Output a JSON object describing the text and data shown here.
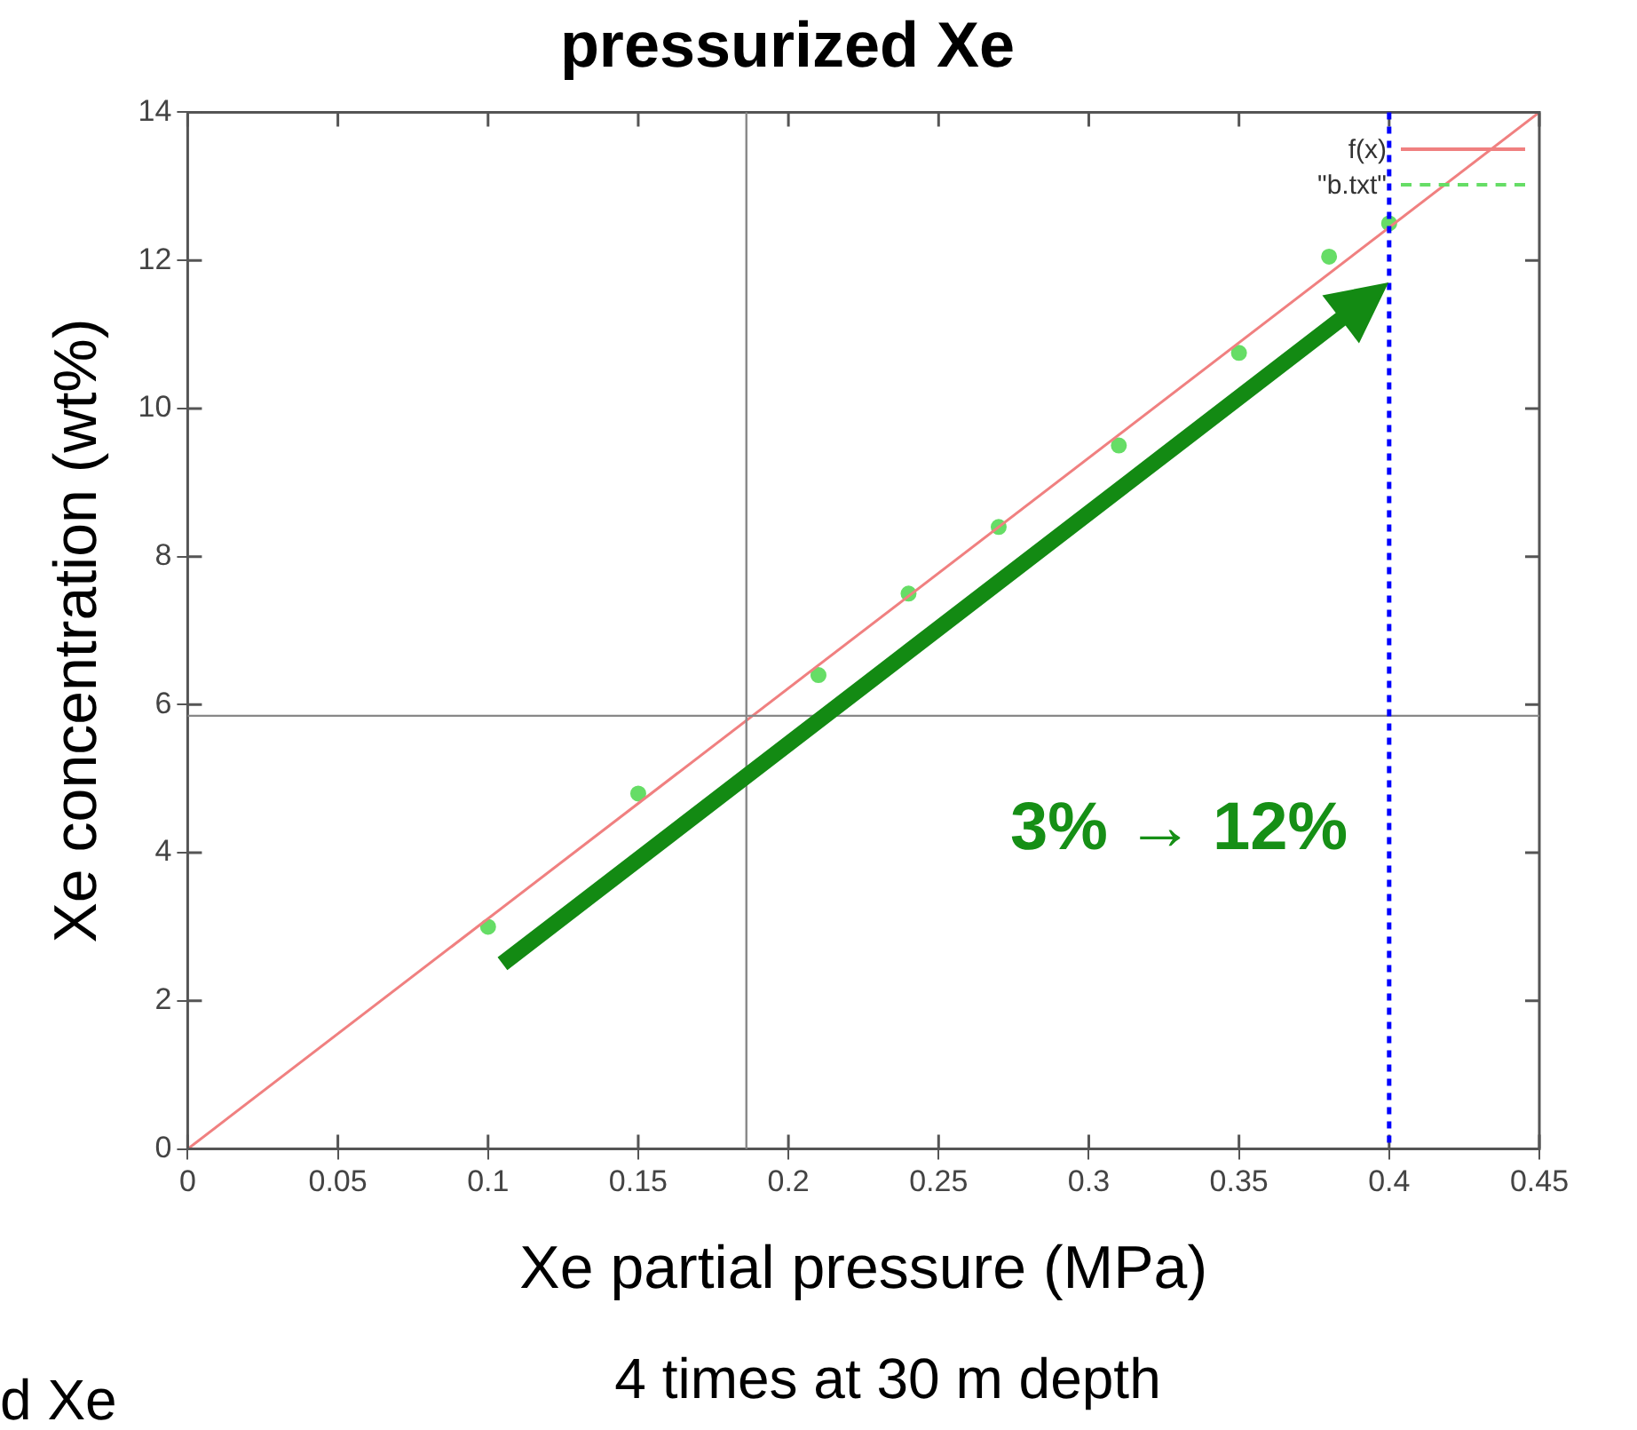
{
  "chart_data": {
    "type": "scatter",
    "title": "pressurized Xe",
    "xlabel": "Xe partial pressure (MPa)",
    "ylabel": "Xe concentration (wt%)",
    "annotations": [
      "3% → 12%",
      "4 times at 30 m depth",
      "d Xe"
    ],
    "series": [
      {
        "name": "f(x)",
        "type": "line",
        "color": "#f08080",
        "marker": "none",
        "x": [
          0,
          0.45
        ],
        "values": [
          0,
          14
        ]
      },
      {
        "name": "\"b.txt\"",
        "type": "scatter",
        "color": "#66dd66",
        "x": [
          0.1,
          0.15,
          0.21,
          0.24,
          0.27,
          0.31,
          0.35,
          0.38,
          0.4
        ],
        "values": [
          3.0,
          4.8,
          6.4,
          7.5,
          8.4,
          9.5,
          10.75,
          12.05,
          12.5
        ],
        "marker": "circle"
      }
    ],
    "xlim": [
      0,
      0.45
    ],
    "xticks": [
      0,
      0.05,
      0.1,
      0.15,
      0.2,
      0.25,
      0.3,
      0.35,
      0.4,
      0.45
    ],
    "ylim": [
      0,
      14
    ],
    "yticks": [
      0,
      2,
      4,
      6,
      8,
      10,
      12,
      14
    ],
    "ref_lines": [
      {
        "axis": "x",
        "value": 0.186,
        "color": "#888888"
      },
      {
        "axis": "y",
        "value": 5.85,
        "color": "#888888"
      },
      {
        "axis": "x",
        "value": 0.4,
        "color": "#0000ff",
        "line_style": "dotted"
      }
    ],
    "grid": false,
    "legend": "top right"
  }
}
